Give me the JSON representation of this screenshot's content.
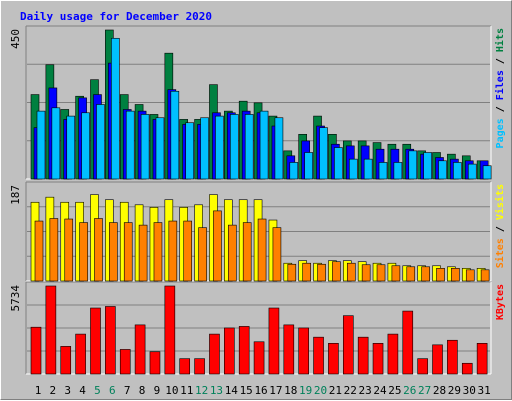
{
  "chart_data": {
    "type": "bar",
    "title": "Daily usage for December 2020",
    "categories": [
      "1",
      "2",
      "3",
      "4",
      "5",
      "6",
      "7",
      "8",
      "9",
      "10",
      "11",
      "12",
      "13",
      "14",
      "15",
      "16",
      "17",
      "18",
      "19",
      "20",
      "21",
      "22",
      "23",
      "24",
      "25",
      "26",
      "27",
      "28",
      "29",
      "30",
      "31"
    ],
    "weekend_categories": [
      "5",
      "6",
      "12",
      "13",
      "19",
      "20",
      "26",
      "27"
    ],
    "panels": [
      {
        "id": "hits",
        "scale_label": "450",
        "ymax": 450,
        "right_labels": [
          "Pages",
          "Files",
          "Hits"
        ],
        "series": [
          {
            "name": "Hits",
            "color": "#008040",
            "values": [
              255,
              345,
              210,
              250,
              300,
              450,
              255,
              225,
              195,
              380,
              180,
              180,
              285,
              205,
              235,
              230,
              190,
              85,
              135,
              190,
              135,
              115,
              115,
              110,
              105,
              105,
              85,
              80,
              75,
              70,
              55
            ]
          },
          {
            "name": "Files",
            "color": "#0000ff",
            "values": [
              155,
              275,
              180,
              245,
              255,
              350,
              210,
              205,
              180,
              270,
              165,
              165,
              200,
              200,
              205,
              200,
              160,
              70,
              115,
              160,
              105,
              100,
              100,
              90,
              90,
              90,
              75,
              65,
              60,
              55,
              55
            ]
          },
          {
            "name": "Pages",
            "color": "#00c0ff",
            "values": [
              205,
              215,
              190,
              200,
              225,
              425,
              205,
              195,
              185,
              265,
              170,
              185,
              190,
              195,
              195,
              205,
              185,
              50,
              80,
              155,
              95,
              60,
              60,
              50,
              50,
              85,
              80,
              55,
              50,
              45,
              40
            ]
          }
        ]
      },
      {
        "id": "visits",
        "scale_label": "187",
        "ymax": 187,
        "right_labels": [
          "Sites",
          "Visits"
        ],
        "series": [
          {
            "name": "Visits",
            "color": "#ffff00",
            "values": [
              155,
              165,
              155,
              155,
              170,
              160,
              155,
              150,
              145,
              160,
              145,
              150,
              170,
              160,
              160,
              160,
              120,
              35,
              40,
              35,
              40,
              40,
              38,
              35,
              35,
              30,
              30,
              30,
              28,
              25,
              25
            ]
          },
          {
            "name": "Sites",
            "color": "#ff8000",
            "values": [
              118,
              123,
              122,
              115,
              123,
              115,
              115,
              110,
              115,
              118,
              118,
              105,
              138,
              110,
              115,
              122,
              105,
              33,
              35,
              33,
              38,
              35,
              32,
              32,
              30,
              28,
              28,
              25,
              25,
              22,
              22
            ]
          }
        ]
      },
      {
        "id": "kbytes",
        "scale_label": "5734",
        "ymax": 5734,
        "right_labels": [
          "KBytes"
        ],
        "series": [
          {
            "name": "KBytes",
            "color": "#ff0000",
            "values": [
              3050,
              5734,
              1800,
              2600,
              4300,
              4400,
              1600,
              3200,
              1450,
              5734,
              1000,
              1000,
              2600,
              3000,
              3100,
              2100,
              4300,
              3200,
              3000,
              2400,
              2000,
              3800,
              2400,
              2000,
              2600,
              4100,
              1000,
              1900,
              2200,
              700,
              2000
            ]
          }
        ]
      }
    ]
  }
}
